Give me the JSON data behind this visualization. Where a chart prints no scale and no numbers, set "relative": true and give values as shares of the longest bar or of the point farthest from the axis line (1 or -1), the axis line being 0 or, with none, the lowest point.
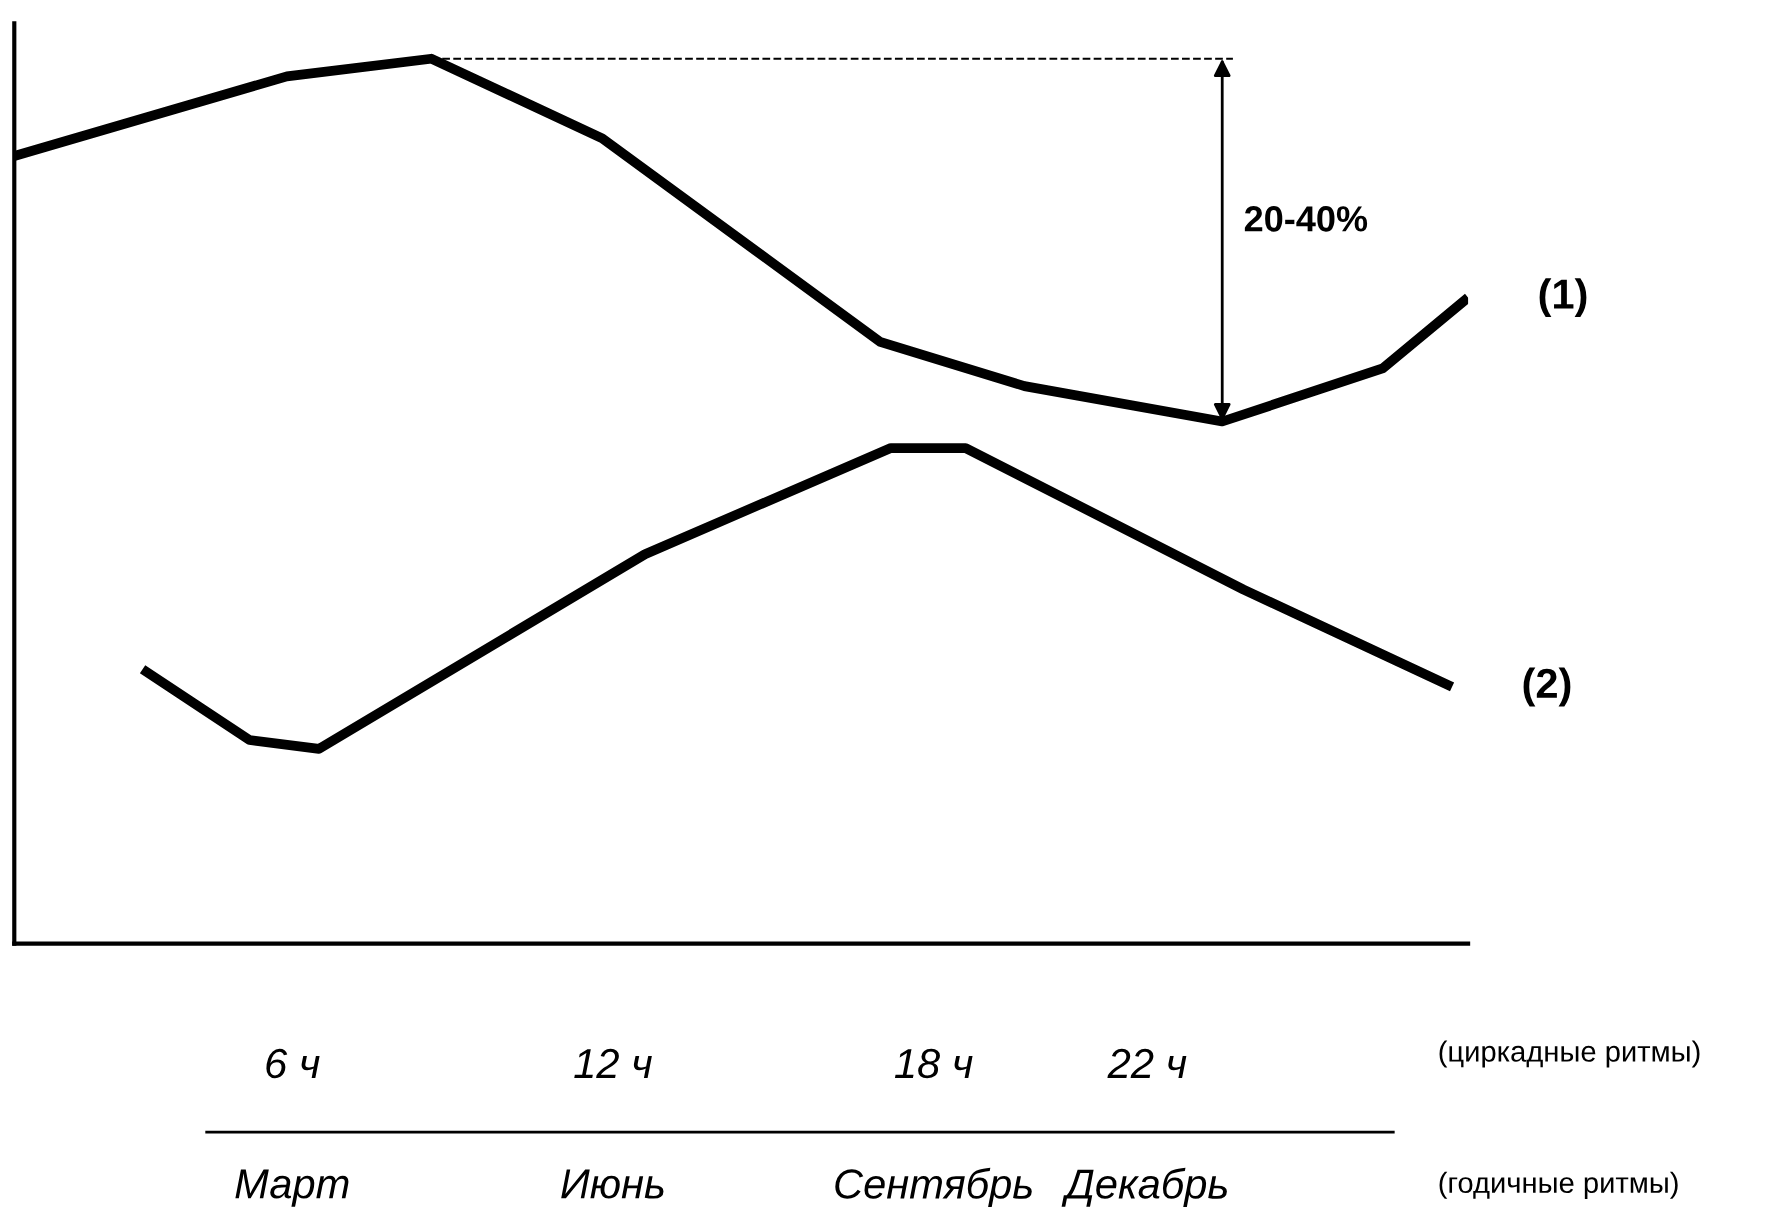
{
  "chart_data": {
    "type": "line",
    "relative": true,
    "xlim": [
      0.8,
      28.0
    ],
    "xticks": [
      {
        "value": 6,
        "label": "6 ч"
      },
      {
        "value": 12,
        "label": "12 ч"
      },
      {
        "value": 18,
        "label": "18 ч"
      },
      {
        "value": 22,
        "label": "22 ч"
      }
    ],
    "series": [
      {
        "name": "(1)",
        "color": "#000000",
        "x": [
          0.8,
          5.9,
          8.6,
          11.8,
          17.0,
          19.7,
          23.4,
          26.4,
          28.0
        ],
        "values": [
          0.89,
          0.98,
          1.0,
          0.91,
          0.68,
          0.63,
          0.59,
          0.65,
          0.73
        ]
      },
      {
        "name": "(2)",
        "color": "#000000",
        "x": [
          3.2,
          5.2,
          6.5,
          12.6,
          17.2,
          18.6,
          23.8,
          27.7
        ],
        "values": [
          0.31,
          0.23,
          0.22,
          0.44,
          0.56,
          0.56,
          0.4,
          0.29
        ]
      }
    ],
    "annotations": [
      "20-40%",
      "(циркадные ритмы)",
      "(годичные ритмы)",
      "Март",
      "Июнь",
      "Сентябрь",
      "Декабрь"
    ],
    "grid": false,
    "legend": false,
    "marker": "none",
    "line_style": "solid"
  }
}
